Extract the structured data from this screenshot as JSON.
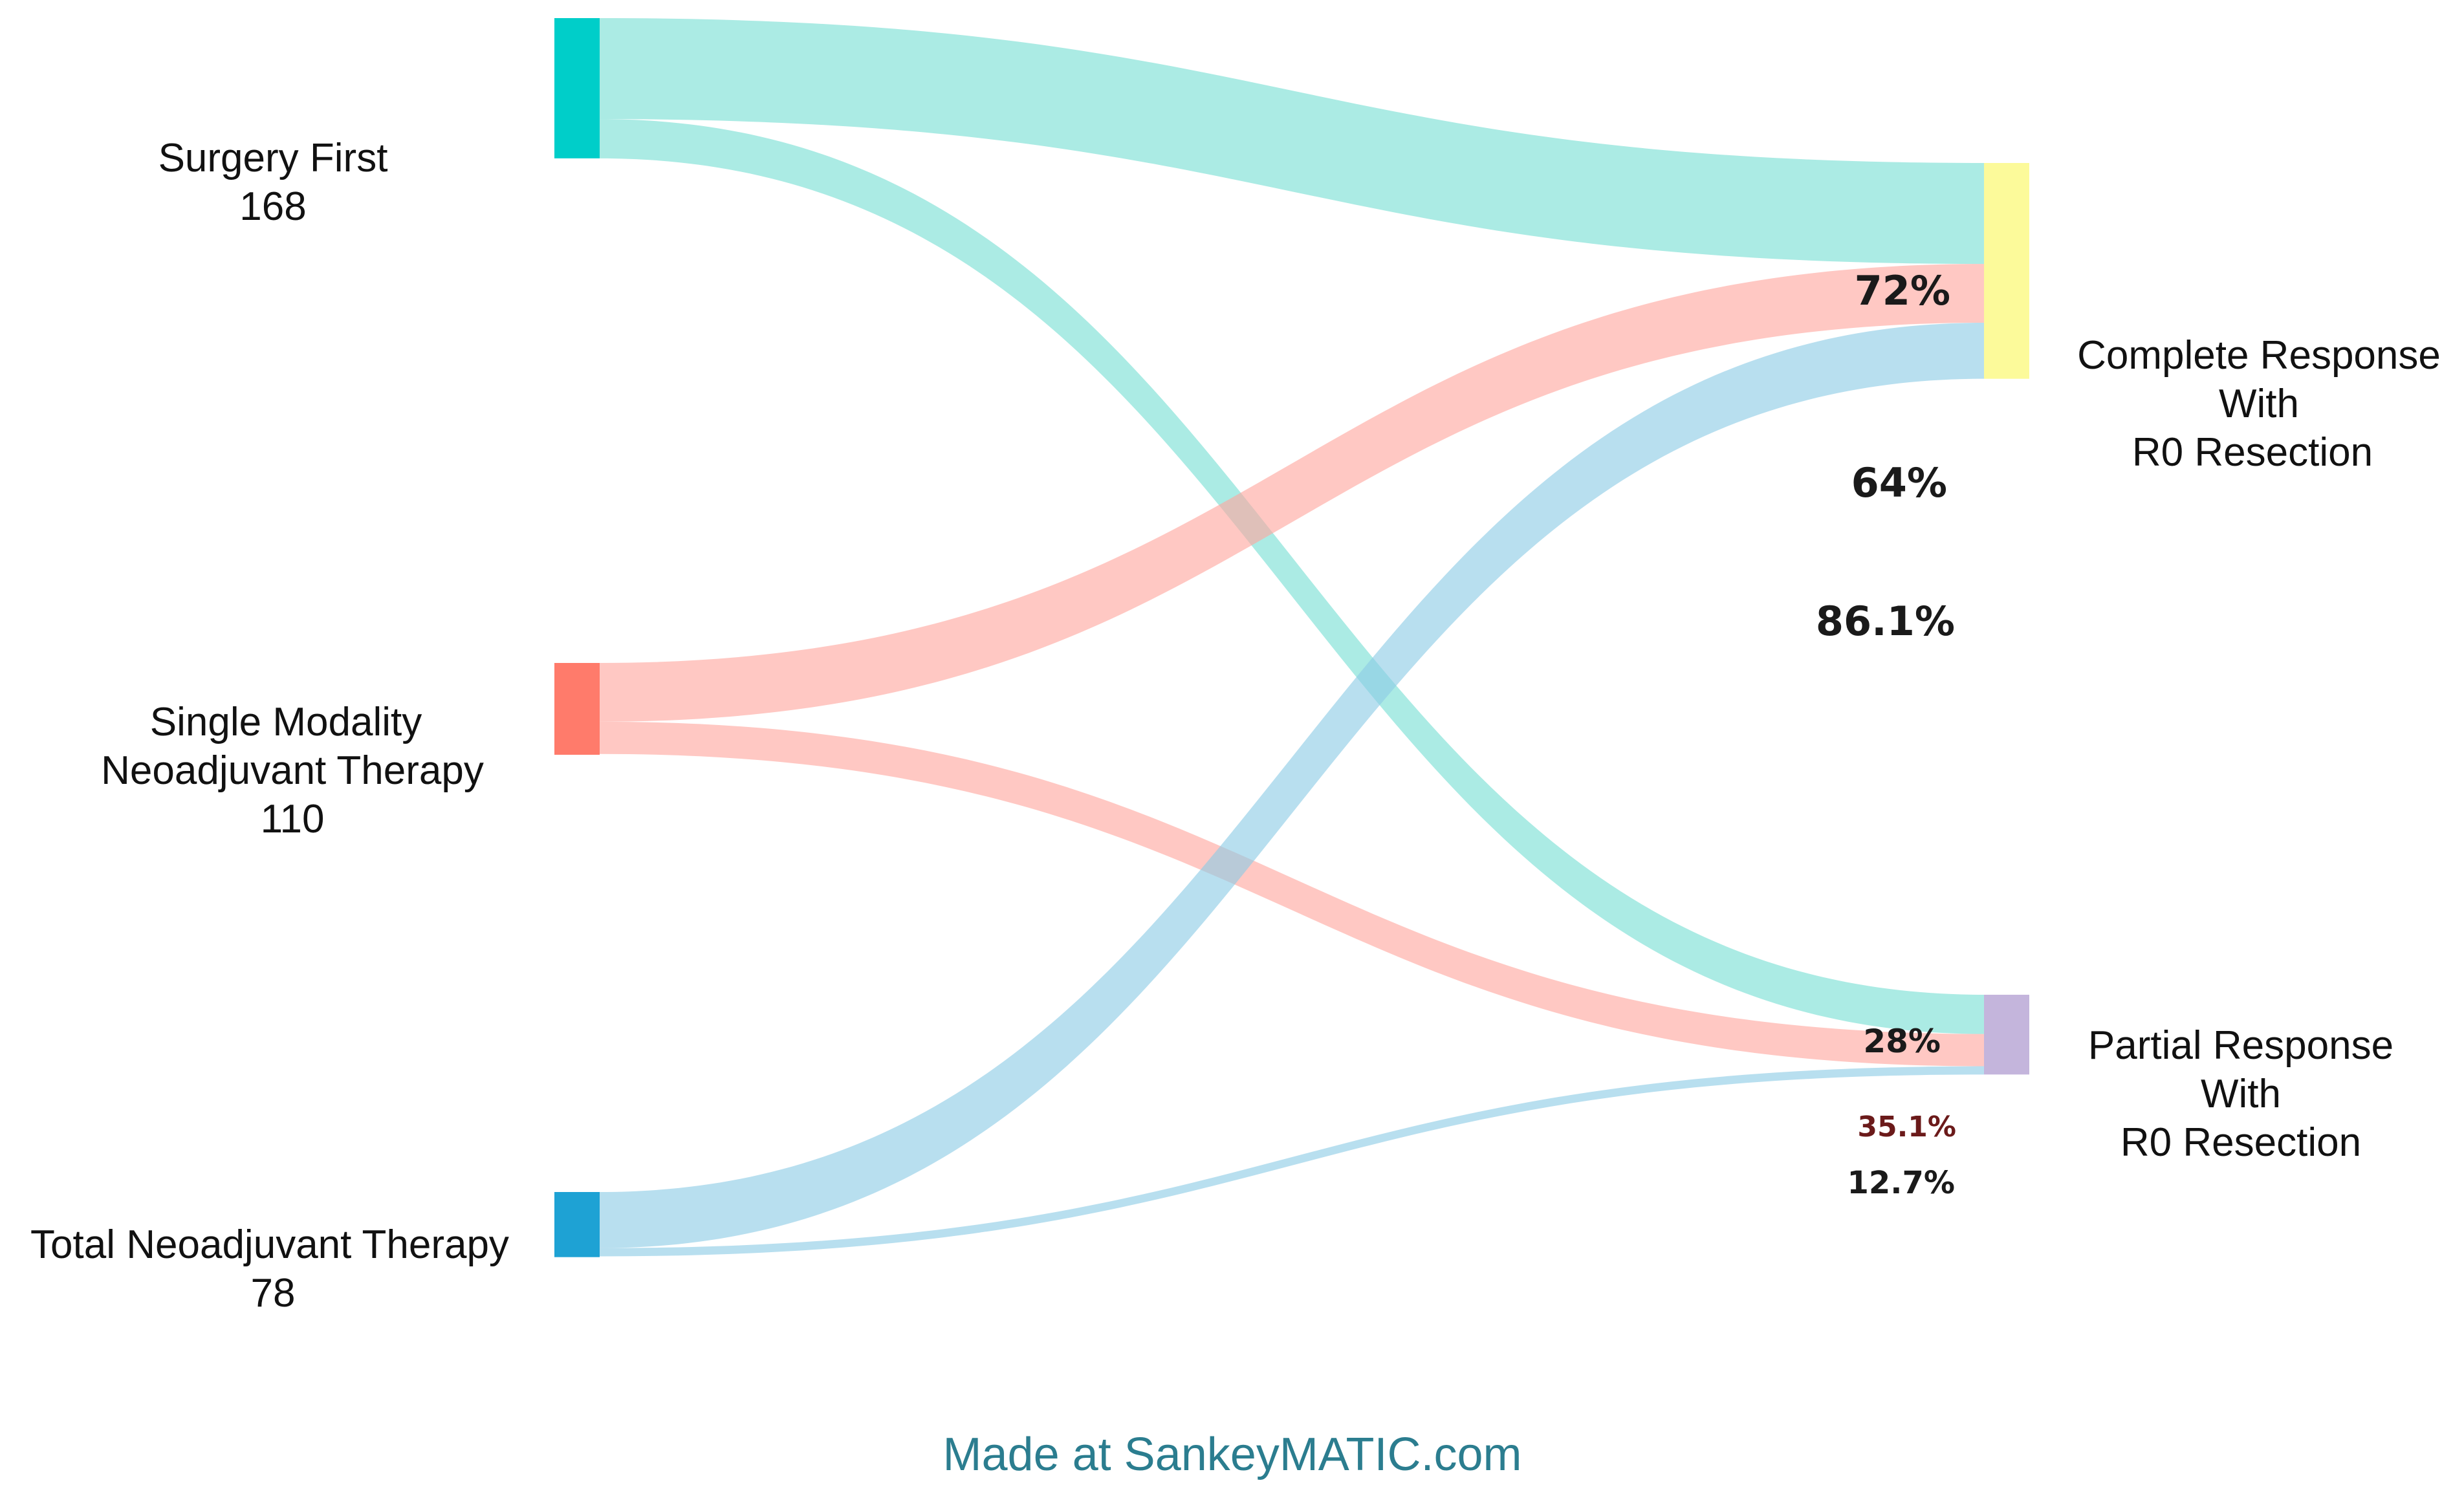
{
  "chart_data": {
    "type": "sankey",
    "title": "",
    "nodes": [
      {
        "id": "sf",
        "name": "Surgery First",
        "value": 168,
        "value_label": "168",
        "color": "#00cec9"
      },
      {
        "id": "sm",
        "name_lines": [
          "Single Modality",
          "Neoadjuvant Therapy"
        ],
        "value": 110,
        "value_label": "110",
        "color": "#ff7b6b"
      },
      {
        "id": "tn",
        "name": "Total Neoadjuvant Therapy",
        "value": 78,
        "value_label": "78",
        "color": "#1ea2d4"
      },
      {
        "id": "cr",
        "name_lines": [
          "Complete Response",
          "With",
          "R0 Resection"
        ],
        "color": "#fcfa9a"
      },
      {
        "id": "pr",
        "name_lines": [
          "Partial Response",
          "With",
          "R0 Resection"
        ],
        "color": "#c4b5dc"
      }
    ],
    "links": [
      {
        "source": "sf",
        "target": "cr",
        "percent": 72,
        "label": "72%",
        "color": "#78dfd4"
      },
      {
        "source": "sf",
        "target": "pr",
        "percent": 28,
        "label": "28%",
        "color": "#78dfd4"
      },
      {
        "source": "sm",
        "target": "cr",
        "percent": 64,
        "label": "64%",
        "color": "#ffa69e"
      },
      {
        "source": "sm",
        "target": "pr",
        "percent": 35.1,
        "label": "35.1%",
        "color": "#ffa69e"
      },
      {
        "source": "tn",
        "target": "cr",
        "percent": 86.1,
        "label": "86.1%",
        "color": "#8ccbe5"
      },
      {
        "source": "tn",
        "target": "pr",
        "percent": 12.7,
        "label": "12.7%",
        "color": "#8ccbe5"
      }
    ]
  },
  "footer": {
    "credit": "Made at SankeyMATIC.com"
  }
}
